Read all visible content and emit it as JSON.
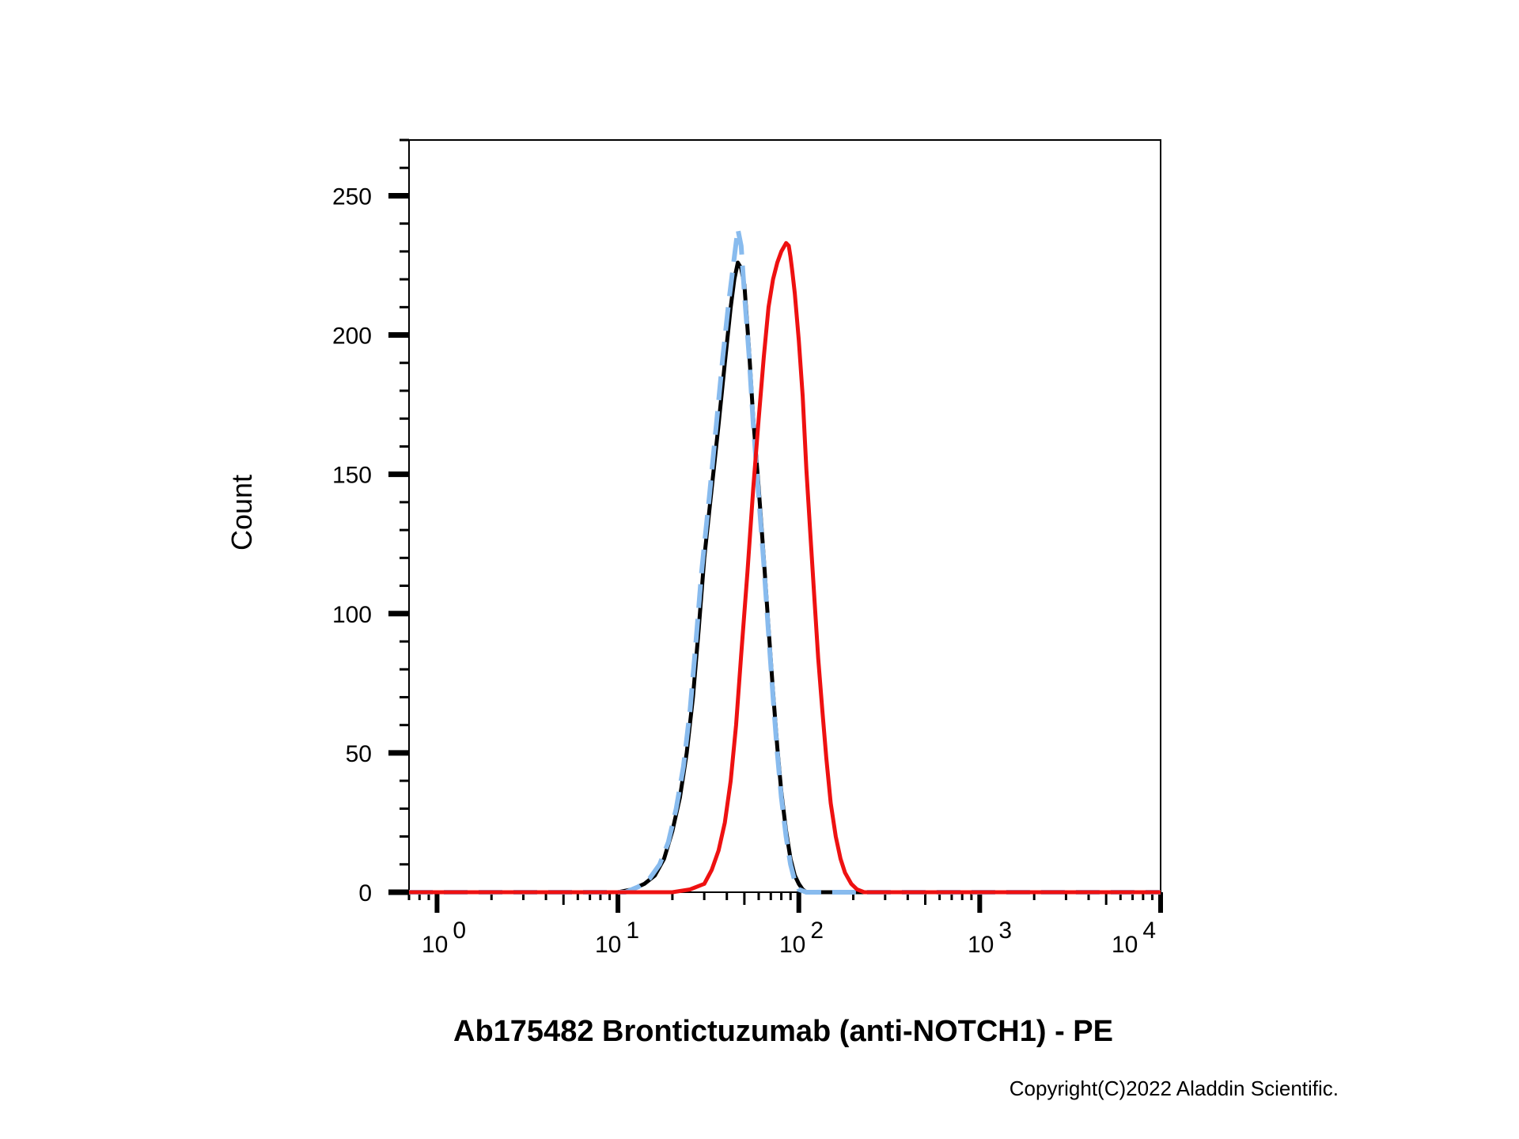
{
  "chart_data": {
    "type": "line",
    "xlabel": "Ab175482 Brontictuzumab (anti-NOTCH1) - PE",
    "ylabel": "Count",
    "x_scale": "log",
    "xlim": [
      0.7,
      10000
    ],
    "ylim": [
      0,
      270
    ],
    "y_ticks": [
      0,
      50,
      100,
      150,
      200,
      250
    ],
    "x_tick_labels": [
      {
        "base": "10",
        "exp": "0"
      },
      {
        "base": "10",
        "exp": "1"
      },
      {
        "base": "10",
        "exp": "2"
      },
      {
        "base": "10",
        "exp": "3"
      },
      {
        "base": "10",
        "exp": "4"
      }
    ],
    "grid": false,
    "legend": false,
    "series": [
      {
        "color": "#000000",
        "style": "solid",
        "x": [
          0.7,
          10,
          12,
          14,
          16,
          18,
          20,
          22,
          24,
          26,
          28,
          30,
          33,
          36,
          39,
          42,
          44,
          46,
          48,
          50,
          53,
          56,
          60,
          64,
          68,
          72,
          76,
          80,
          85,
          90,
          95,
          100,
          105,
          110,
          120,
          10000
        ],
        "y": [
          0,
          0,
          1,
          3,
          6,
          12,
          22,
          34,
          50,
          70,
          95,
          120,
          145,
          168,
          190,
          210,
          220,
          226,
          224,
          218,
          195,
          170,
          145,
          120,
          95,
          72,
          52,
          36,
          22,
          12,
          6,
          3,
          1,
          0,
          0,
          0
        ]
      },
      {
        "color": "#88bbee",
        "style": "dashed",
        "x": [
          0.7,
          11,
          13,
          15,
          17,
          19,
          21,
          23,
          25,
          27,
          29,
          32,
          35,
          38,
          41,
          44,
          46,
          48,
          50,
          53,
          56,
          60,
          64,
          68,
          72,
          76,
          80,
          85,
          90,
          95,
          100,
          110,
          10000
        ],
        "y": [
          0,
          0,
          2,
          5,
          10,
          18,
          30,
          45,
          65,
          90,
          115,
          142,
          168,
          192,
          212,
          228,
          238,
          232,
          215,
          193,
          168,
          142,
          118,
          93,
          70,
          50,
          34,
          20,
          10,
          4,
          1,
          0,
          0
        ]
      },
      {
        "color": "#ee1111",
        "style": "solid",
        "x": [
          0.7,
          20,
          25,
          30,
          33,
          36,
          39,
          42,
          45,
          48,
          52,
          56,
          60,
          64,
          68,
          72,
          76,
          80,
          85,
          88,
          90,
          92,
          95,
          100,
          105,
          110,
          116,
          122,
          128,
          135,
          142,
          150,
          160,
          170,
          180,
          195,
          210,
          230,
          260,
          300,
          10000
        ],
        "y": [
          0,
          0,
          1,
          3,
          8,
          15,
          25,
          40,
          60,
          85,
          115,
          145,
          170,
          192,
          210,
          220,
          226,
          230,
          233,
          232,
          228,
          223,
          215,
          198,
          178,
          152,
          128,
          105,
          84,
          65,
          48,
          32,
          20,
          12,
          7,
          3,
          1,
          0,
          0,
          0,
          0
        ]
      }
    ]
  },
  "copyright": "Copyright(C)2022 Aladdin Scientific."
}
